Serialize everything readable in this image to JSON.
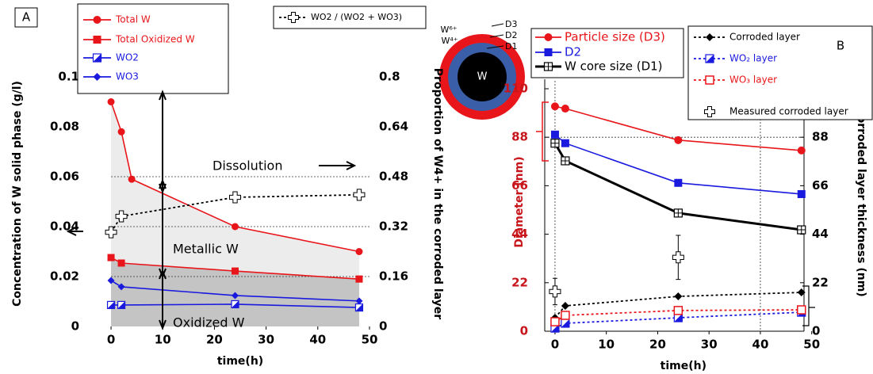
{
  "chart_data": [
    {
      "type": "line",
      "panel": "A",
      "xlabel": "time(h)",
      "ylabel": "Concentration of W solid phase (g/l)",
      "y2label": "Proportion of W4+ in the corroded layer",
      "xlim": [
        -2,
        50
      ],
      "xticks": [
        0,
        10,
        20,
        30,
        40,
        50
      ],
      "ylim": [
        0,
        0.1
      ],
      "yticks": [
        0,
        0.02,
        0.04,
        0.06,
        0.08,
        0.1
      ],
      "y2lim": [
        0,
        0.8
      ],
      "y2ticks": [
        0,
        0.16,
        0.32,
        0.48,
        0.64,
        0.8
      ],
      "ygrid": [
        0.02,
        0.04,
        0.06
      ],
      "series": [
        {
          "name": "Total W",
          "color": "#e8161b",
          "marker": "circle",
          "fill": "#ececec",
          "x": [
            0,
            2,
            4,
            24,
            48
          ],
          "values": [
            0.09,
            0.078,
            0.059,
            0.04,
            0.03
          ]
        },
        {
          "name": "Total Oxidized W",
          "color": "#e8161b",
          "marker": "square",
          "fill": "#c4c4c4",
          "x": [
            0,
            2,
            24,
            48
          ],
          "values": [
            0.0276,
            0.0254,
            0.0222,
            0.019
          ]
        },
        {
          "name": "WO2",
          "color": "#1a1adf",
          "marker": "hatch",
          "x": [
            0,
            2,
            24,
            48
          ],
          "values": [
            0.0086,
            0.0086,
            0.0089,
            0.0076
          ]
        },
        {
          "name": "WO3",
          "color": "#1a1adf",
          "marker": "diamond",
          "x": [
            0,
            2,
            24,
            48
          ],
          "values": [
            0.0184,
            0.0159,
            0.0124,
            0.0102
          ]
        },
        {
          "name": "WO2 / (WO2 + WO3)",
          "color": "#000000",
          "marker": "cross",
          "dash": "dotted",
          "axis": "y2",
          "x": [
            0,
            2,
            24,
            48
          ],
          "values": [
            0.302,
            0.353,
            0.414,
            0.422
          ]
        }
      ],
      "annotations": [
        "Dissolution",
        "Metallic W",
        "Oxidized W"
      ]
    },
    {
      "type": "line",
      "panel": "B",
      "xlabel": "time(h)",
      "ylabel": "Diameter (nm)",
      "y2label": "Corroded layer thickness (nm)",
      "ycolor": "#c8151b",
      "xlim": [
        -2,
        48.5
      ],
      "xticks": [
        0,
        10,
        20,
        30,
        40,
        50
      ],
      "ylim": [
        0,
        110
      ],
      "yticks": [
        0,
        22,
        44,
        66,
        88,
        110
      ],
      "y2lim": [
        0,
        110
      ],
      "y2ticks": [
        0,
        22,
        44,
        66,
        88
      ],
      "xgrid": [
        0,
        40
      ],
      "ygrid": [
        88
      ],
      "series": [
        {
          "name": "Particle size (D3)",
          "color": "#e8161b",
          "marker": "circle",
          "x": [
            0,
            2,
            24,
            48
          ],
          "values": [
            102,
            101,
            86.7,
            82
          ]
        },
        {
          "name": "D2",
          "color": "#1a1adf",
          "marker": "square",
          "x": [
            0,
            2,
            24,
            48
          ],
          "values": [
            89.2,
            85.3,
            67.3,
            62.2
          ]
        },
        {
          "name": "W core size (D1)",
          "color": "#000000",
          "marker": "square-plus",
          "width": 3,
          "x": [
            0,
            2,
            24,
            48
          ],
          "values": [
            85.3,
            77.3,
            53.6,
            46
          ]
        },
        {
          "name": "Corroded layer",
          "color": "#000000",
          "marker": "diamond",
          "dash": "dotted",
          "axis": "y2",
          "x": [
            0,
            2,
            24,
            48
          ],
          "values": [
            6.1,
            11.5,
            15.8,
            17.6
          ]
        },
        {
          "name": "WO₂ layer",
          "color": "#1a1adf",
          "marker": "hatch",
          "dash": "dotted",
          "axis": "y2",
          "x": [
            0,
            2,
            24,
            48
          ],
          "values": [
            1.4,
            3.6,
            6.1,
            8.6
          ]
        },
        {
          "name": "WO₃ layer",
          "color": "#e8161b",
          "marker": "square-open",
          "dash": "dotted",
          "axis": "y2",
          "x": [
            0,
            2,
            24,
            48
          ],
          "values": [
            4.3,
            7.2,
            9.4,
            9.7
          ]
        },
        {
          "name": "Measured corroded layer",
          "color": "#000000",
          "marker": "cross",
          "line": false,
          "axis": "y2",
          "x": [
            0,
            24
          ],
          "values": [
            18,
            33.5
          ],
          "errors": [
            6,
            10
          ]
        }
      ],
      "annotations": [
        "W⁶⁺",
        "W⁴⁺",
        "D3",
        "D2",
        "D1",
        "W"
      ]
    }
  ]
}
